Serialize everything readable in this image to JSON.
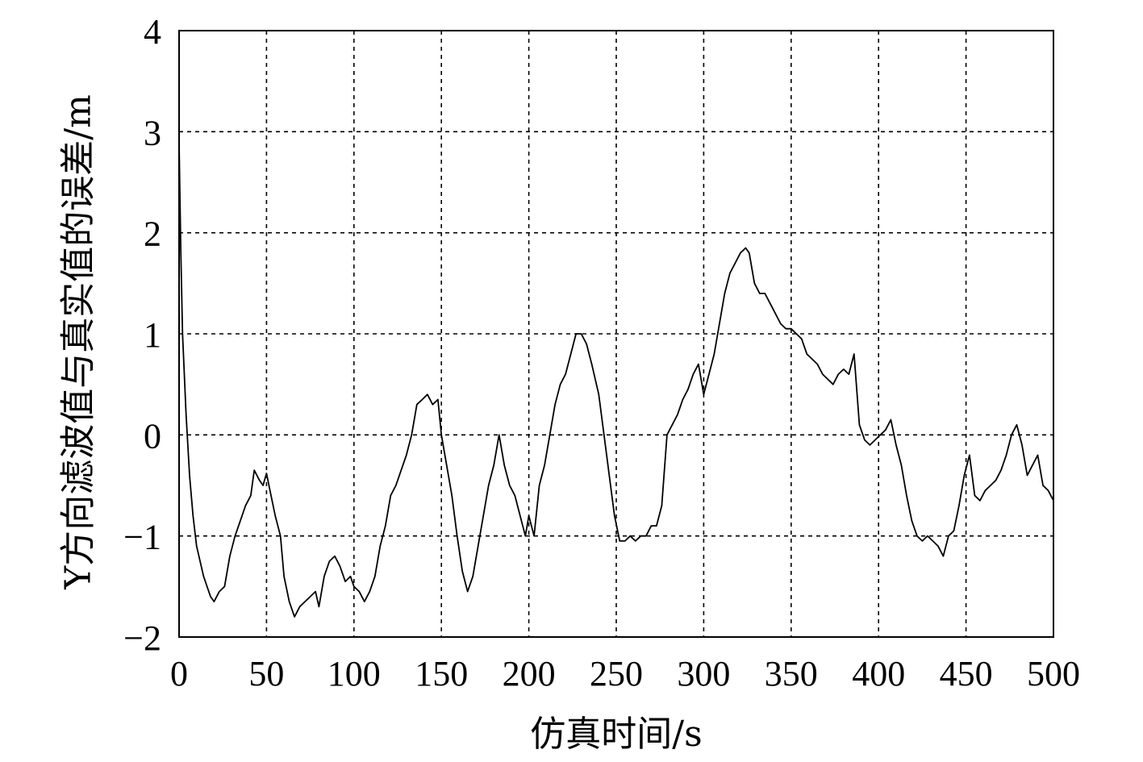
{
  "chart_data": {
    "type": "line",
    "title": "",
    "xlabel": "仿真时间/s",
    "ylabel": "Y方向滤波值与真实值的误差/m",
    "xlim": [
      0,
      500
    ],
    "ylim": [
      -2,
      4
    ],
    "xticks": [
      0,
      50,
      100,
      150,
      200,
      250,
      300,
      350,
      400,
      450,
      500
    ],
    "yticks": [
      -2,
      -1,
      0,
      1,
      2,
      3,
      4
    ],
    "xtick_labels": [
      "0",
      "50",
      "100",
      "150",
      "200",
      "250",
      "300",
      "350",
      "400",
      "450",
      "500"
    ],
    "ytick_labels": [
      "−2",
      "−1",
      "0",
      "1",
      "2",
      "3",
      "4"
    ],
    "grid": true,
    "legend": "none",
    "series": [
      {
        "color": "#000000",
        "x": [
          0,
          1,
          2,
          4,
          6,
          8,
          10,
          14,
          18,
          20,
          23,
          26,
          29,
          32,
          35,
          38,
          41,
          43,
          46,
          48,
          50,
          52,
          55,
          58,
          60,
          63,
          66,
          69,
          72,
          75,
          78,
          80,
          83,
          86,
          89,
          92,
          95,
          98,
          100,
          103,
          106,
          109,
          112,
          115,
          118,
          121,
          124,
          127,
          130,
          133,
          136,
          139,
          142,
          145,
          148,
          150,
          153,
          156,
          159,
          162,
          165,
          168,
          171,
          174,
          177,
          180,
          183,
          186,
          189,
          192,
          195,
          198,
          200,
          203,
          206,
          209,
          212,
          215,
          218,
          221,
          224,
          227,
          230,
          233,
          236,
          240,
          243,
          246,
          249,
          252,
          255,
          258,
          261,
          264,
          267,
          270,
          273,
          276,
          279,
          282,
          285,
          288,
          291,
          294,
          297,
          300,
          303,
          306,
          309,
          312,
          315,
          318,
          321,
          324,
          326,
          329,
          332,
          335,
          338,
          341,
          344,
          347,
          350,
          353,
          356,
          359,
          362,
          365,
          368,
          371,
          374,
          377,
          380,
          383,
          386,
          389,
          392,
          395,
          398,
          401,
          404,
          407,
          410,
          413,
          416,
          419,
          422,
          425,
          428,
          431,
          434,
          437,
          440,
          443,
          446,
          449,
          452,
          455,
          458,
          461,
          464,
          467,
          470,
          473,
          476,
          479,
          482,
          485,
          488,
          491,
          494,
          497,
          500
        ],
        "values": [
          2.9,
          1.8,
          1.0,
          0.2,
          -0.4,
          -0.8,
          -1.1,
          -1.4,
          -1.6,
          -1.65,
          -1.55,
          -1.5,
          -1.2,
          -1.0,
          -0.85,
          -0.7,
          -0.6,
          -0.35,
          -0.45,
          -0.5,
          -0.38,
          -0.55,
          -0.8,
          -1.0,
          -1.4,
          -1.65,
          -1.8,
          -1.7,
          -1.65,
          -1.6,
          -1.55,
          -1.7,
          -1.4,
          -1.25,
          -1.2,
          -1.3,
          -1.45,
          -1.4,
          -1.5,
          -1.55,
          -1.65,
          -1.55,
          -1.4,
          -1.1,
          -0.9,
          -0.6,
          -0.5,
          -0.35,
          -0.2,
          0.0,
          0.3,
          0.35,
          0.4,
          0.3,
          0.35,
          0.0,
          -0.3,
          -0.6,
          -1.0,
          -1.35,
          -1.55,
          -1.4,
          -1.1,
          -0.8,
          -0.5,
          -0.3,
          0.0,
          -0.3,
          -0.5,
          -0.6,
          -0.8,
          -1.0,
          -0.8,
          -1.0,
          -0.5,
          -0.3,
          0.0,
          0.3,
          0.5,
          0.6,
          0.8,
          1.0,
          1.0,
          0.9,
          0.7,
          0.4,
          0.0,
          -0.4,
          -0.8,
          -1.05,
          -1.05,
          -1.0,
          -1.05,
          -1.0,
          -1.0,
          -0.9,
          -0.9,
          -0.7,
          0.0,
          0.1,
          0.2,
          0.35,
          0.45,
          0.6,
          0.7,
          0.4,
          0.6,
          0.8,
          1.1,
          1.4,
          1.6,
          1.7,
          1.8,
          1.85,
          1.8,
          1.5,
          1.4,
          1.4,
          1.3,
          1.2,
          1.1,
          1.05,
          1.05,
          1.0,
          0.95,
          0.8,
          0.75,
          0.7,
          0.6,
          0.55,
          0.5,
          0.6,
          0.65,
          0.6,
          0.8,
          0.1,
          -0.05,
          -0.1,
          -0.05,
          0.0,
          0.05,
          0.15,
          -0.1,
          -0.3,
          -0.6,
          -0.85,
          -1.0,
          -1.05,
          -1.0,
          -1.05,
          -1.1,
          -1.2,
          -1.0,
          -0.95,
          -0.7,
          -0.4,
          -0.2,
          -0.6,
          -0.65,
          -0.55,
          -0.5,
          -0.45,
          -0.35,
          -0.2,
          0.0,
          0.1,
          -0.1,
          -0.4,
          -0.3,
          -0.2,
          -0.5,
          -0.55,
          -0.65
        ]
      }
    ]
  }
}
